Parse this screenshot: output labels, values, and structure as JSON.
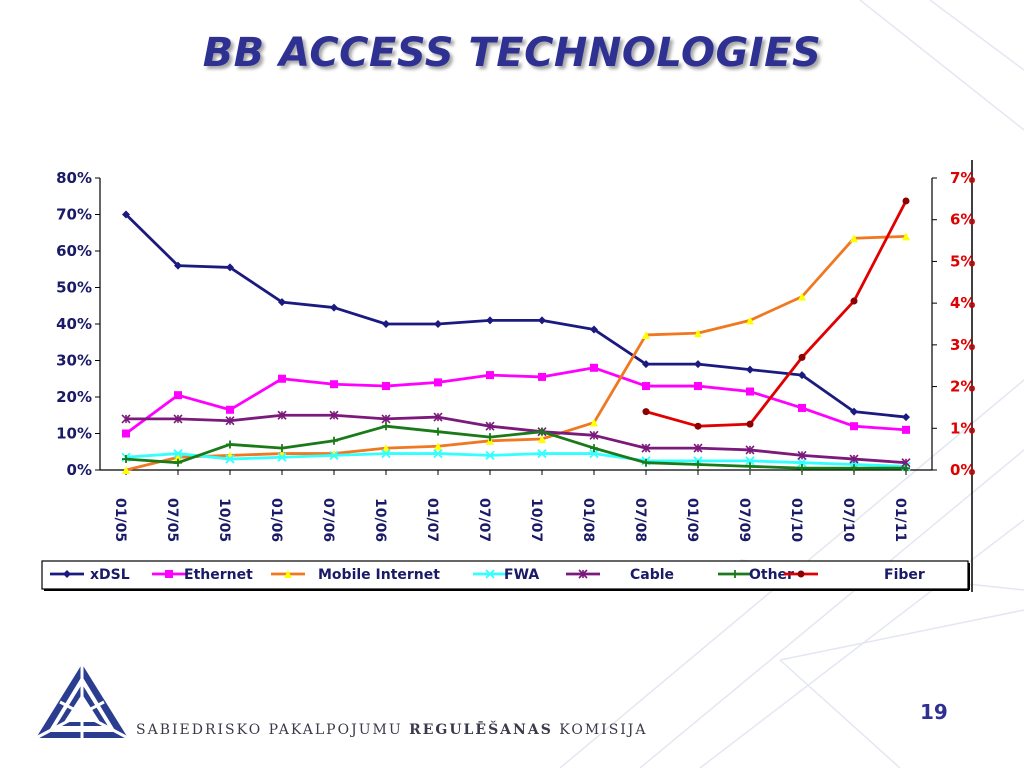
{
  "title": "BB ACCESS TECHNOLOGIES",
  "footer": {
    "org_part1": "SABIEDRISKO PAKALPOJUMU ",
    "org_part2": "REGULĒŠANAS",
    "org_part3": " KOMISIJA",
    "page_number": "19"
  },
  "colors": {
    "title": "#2e3192",
    "xDSL": "#1a1a80",
    "Ethernet": "#ff00ff",
    "Mobile Internet": "#f07820",
    "FWA": "#33ffff",
    "Cable": "#7b1a7b",
    "Other": "#1a7a1a",
    "Fiber": "#e00000"
  },
  "chart_data": {
    "type": "line",
    "categories": [
      "01/05",
      "07/05",
      "10/05",
      "01/06",
      "07/06",
      "10/06",
      "01/07",
      "07/07",
      "10/07",
      "01/08",
      "07/08",
      "01/09",
      "07/09",
      "01/10",
      "07/10",
      "01/11"
    ],
    "left_axis": {
      "ticks": [
        "0%",
        "10%",
        "20%",
        "30%",
        "40%",
        "50%",
        "60%",
        "70%",
        "80%"
      ],
      "ylim": [
        0,
        80
      ]
    },
    "right_axis": {
      "ticks": [
        "0%",
        "1%",
        "2%",
        "3%",
        "4%",
        "5%",
        "6%",
        "7%"
      ],
      "ylim": [
        0,
        7
      ]
    },
    "legend_position": "bottom",
    "series": [
      {
        "name": "xDSL",
        "axis": "left",
        "marker": "diamond",
        "values": [
          70,
          56,
          55.5,
          46,
          44.5,
          40,
          40,
          41,
          41,
          38.5,
          29,
          29,
          27.5,
          26,
          16,
          14.5
        ]
      },
      {
        "name": "Ethernet",
        "axis": "left",
        "marker": "square",
        "values": [
          10,
          20.5,
          16.5,
          25,
          23.5,
          23,
          24,
          26,
          25.5,
          28,
          23,
          23,
          21.5,
          17,
          12,
          11
        ]
      },
      {
        "name": "Mobile Internet",
        "axis": "left",
        "marker": "triangle",
        "values": [
          0,
          3.5,
          4,
          4.5,
          4.5,
          6,
          6.5,
          8,
          8.5,
          13,
          37,
          37.5,
          41,
          47.5,
          63.5,
          64
        ]
      },
      {
        "name": "FWA",
        "axis": "left",
        "marker": "x",
        "values": [
          3.5,
          4.5,
          3,
          3.5,
          4,
          4.5,
          4.5,
          4,
          4.5,
          4.5,
          2.5,
          2.5,
          2.5,
          2,
          1.5,
          1
        ]
      },
      {
        "name": "Cable",
        "axis": "left",
        "marker": "star",
        "values": [
          14,
          14,
          13.5,
          15,
          15,
          14,
          14.5,
          12,
          10.5,
          9.5,
          6,
          6,
          5.5,
          4,
          3,
          2
        ]
      },
      {
        "name": "Other",
        "axis": "left",
        "marker": "plus",
        "values": [
          3,
          2,
          7,
          6,
          8,
          12,
          10.5,
          9,
          10.5,
          6,
          2,
          1.5,
          1,
          0.5,
          0.5,
          0.5
        ]
      },
      {
        "name": "Fiber",
        "axis": "right",
        "marker": "circle",
        "values": [
          null,
          null,
          null,
          null,
          null,
          null,
          null,
          null,
          null,
          null,
          1.4,
          1.05,
          1.1,
          2.7,
          4.05,
          6.45
        ]
      }
    ]
  }
}
